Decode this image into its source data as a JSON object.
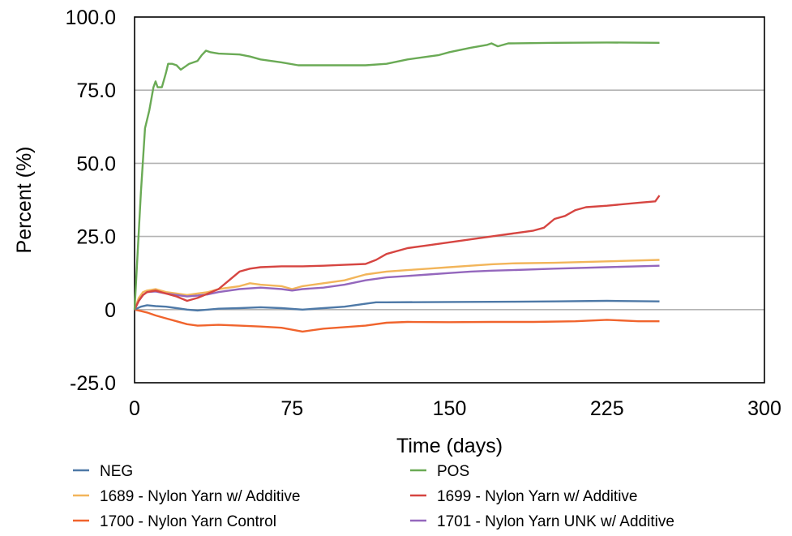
{
  "chart_data": {
    "type": "line",
    "title": "",
    "xlabel": "Time (days)",
    "ylabel": "Percent (%)",
    "xlim": [
      0,
      300
    ],
    "ylim": [
      -25,
      100
    ],
    "x_ticks": [
      0,
      75,
      150,
      225,
      300
    ],
    "x_tick_labels": [
      "0",
      "75",
      "150",
      "225",
      "300"
    ],
    "y_ticks": [
      -25,
      0,
      25,
      50,
      75,
      100
    ],
    "y_tick_labels": [
      "-25.0",
      "0",
      "25.0",
      "50.0",
      "75.0",
      "100.0"
    ],
    "grid": "horizontal",
    "legend_position": "bottom",
    "series": [
      {
        "name": "NEG",
        "color": "#4e79a7",
        "points": [
          [
            0,
            0
          ],
          [
            3,
            1
          ],
          [
            6,
            1.5
          ],
          [
            10,
            1.2
          ],
          [
            15,
            1
          ],
          [
            20,
            0.5
          ],
          [
            25,
            0
          ],
          [
            30,
            -0.3
          ],
          [
            40,
            0.3
          ],
          [
            50,
            0.5
          ],
          [
            60,
            0.8
          ],
          [
            70,
            0.5
          ],
          [
            80,
            0
          ],
          [
            90,
            0.5
          ],
          [
            100,
            1
          ],
          [
            110,
            2
          ],
          [
            115,
            2.5
          ],
          [
            120,
            2.5
          ],
          [
            150,
            2.6
          ],
          [
            180,
            2.7
          ],
          [
            200,
            2.8
          ],
          [
            225,
            3
          ],
          [
            250,
            2.8
          ]
        ]
      },
      {
        "name": "POS",
        "color": "#6aaa55",
        "points": [
          [
            0,
            0
          ],
          [
            3,
            40
          ],
          [
            5,
            62
          ],
          [
            7,
            68
          ],
          [
            9,
            76
          ],
          [
            10,
            78
          ],
          [
            11,
            76
          ],
          [
            13,
            76
          ],
          [
            15,
            81
          ],
          [
            16,
            84
          ],
          [
            18,
            84
          ],
          [
            20,
            83.5
          ],
          [
            22,
            82
          ],
          [
            24,
            83
          ],
          [
            26,
            84
          ],
          [
            30,
            85
          ],
          [
            32,
            87
          ],
          [
            34,
            88.5
          ],
          [
            36,
            88
          ],
          [
            40,
            87.5
          ],
          [
            50,
            87.2
          ],
          [
            55,
            86.5
          ],
          [
            60,
            85.5
          ],
          [
            70,
            84.5
          ],
          [
            78,
            83.5
          ],
          [
            90,
            83.5
          ],
          [
            110,
            83.5
          ],
          [
            120,
            84
          ],
          [
            130,
            85.5
          ],
          [
            140,
            86.5
          ],
          [
            145,
            87
          ],
          [
            150,
            88
          ],
          [
            160,
            89.5
          ],
          [
            168,
            90.5
          ],
          [
            170,
            91
          ],
          [
            173,
            90
          ],
          [
            178,
            91
          ],
          [
            200,
            91.2
          ],
          [
            225,
            91.3
          ],
          [
            250,
            91.2
          ]
        ]
      },
      {
        "name": "1689 - Nylon Yarn w/ Additive",
        "color": "#f2b55a",
        "points": [
          [
            0,
            0
          ],
          [
            2,
            4
          ],
          [
            4,
            6
          ],
          [
            6,
            6.5
          ],
          [
            10,
            7
          ],
          [
            15,
            6
          ],
          [
            20,
            5.5
          ],
          [
            25,
            5
          ],
          [
            30,
            5.5
          ],
          [
            35,
            6
          ],
          [
            40,
            7
          ],
          [
            50,
            8
          ],
          [
            55,
            9
          ],
          [
            60,
            8.5
          ],
          [
            70,
            8
          ],
          [
            75,
            7
          ],
          [
            80,
            8
          ],
          [
            90,
            9
          ],
          [
            100,
            10
          ],
          [
            110,
            12
          ],
          [
            120,
            13
          ],
          [
            130,
            13.5
          ],
          [
            140,
            14
          ],
          [
            150,
            14.5
          ],
          [
            160,
            15
          ],
          [
            170,
            15.5
          ],
          [
            180,
            15.8
          ],
          [
            200,
            16
          ],
          [
            225,
            16.5
          ],
          [
            250,
            17
          ]
        ]
      },
      {
        "name": "1699 - Nylon Yarn w/ Additive",
        "color": "#d64541",
        "points": [
          [
            0,
            0
          ],
          [
            2,
            3
          ],
          [
            4,
            5
          ],
          [
            6,
            6
          ],
          [
            10,
            6.5
          ],
          [
            15,
            5.5
          ],
          [
            20,
            4.5
          ],
          [
            25,
            3
          ],
          [
            30,
            4
          ],
          [
            35,
            5.5
          ],
          [
            40,
            7
          ],
          [
            45,
            10
          ],
          [
            50,
            13
          ],
          [
            55,
            14
          ],
          [
            60,
            14.5
          ],
          [
            70,
            14.8
          ],
          [
            80,
            14.8
          ],
          [
            90,
            15
          ],
          [
            100,
            15.3
          ],
          [
            110,
            15.6
          ],
          [
            115,
            17
          ],
          [
            120,
            19
          ],
          [
            130,
            21
          ],
          [
            140,
            22
          ],
          [
            150,
            23
          ],
          [
            160,
            24
          ],
          [
            170,
            25
          ],
          [
            180,
            26
          ],
          [
            190,
            27
          ],
          [
            195,
            28
          ],
          [
            200,
            31
          ],
          [
            205,
            32
          ],
          [
            210,
            34
          ],
          [
            215,
            35
          ],
          [
            225,
            35.5
          ],
          [
            240,
            36.5
          ],
          [
            248,
            37
          ],
          [
            250,
            39
          ]
        ]
      },
      {
        "name": "1700 - Nylon Yarn Control",
        "color": "#f0642d",
        "points": [
          [
            0,
            0
          ],
          [
            3,
            -0.5
          ],
          [
            6,
            -1
          ],
          [
            10,
            -2
          ],
          [
            15,
            -3
          ],
          [
            20,
            -4
          ],
          [
            25,
            -5
          ],
          [
            30,
            -5.5
          ],
          [
            40,
            -5.2
          ],
          [
            50,
            -5.5
          ],
          [
            60,
            -5.8
          ],
          [
            70,
            -6.2
          ],
          [
            80,
            -7.5
          ],
          [
            90,
            -6.5
          ],
          [
            100,
            -6
          ],
          [
            110,
            -5.5
          ],
          [
            120,
            -4.5
          ],
          [
            130,
            -4.2
          ],
          [
            150,
            -4.3
          ],
          [
            170,
            -4.2
          ],
          [
            190,
            -4.2
          ],
          [
            210,
            -4
          ],
          [
            225,
            -3.5
          ],
          [
            240,
            -4
          ],
          [
            250,
            -4
          ]
        ]
      },
      {
        "name": "1701 - Nylon Yarn UNK w/ Additive",
        "color": "#9467bd",
        "points": [
          [
            0,
            0
          ],
          [
            2,
            3
          ],
          [
            4,
            5
          ],
          [
            6,
            6
          ],
          [
            10,
            6.2
          ],
          [
            15,
            5.5
          ],
          [
            20,
            5
          ],
          [
            25,
            4.5
          ],
          [
            30,
            4.8
          ],
          [
            35,
            5.2
          ],
          [
            40,
            6
          ],
          [
            50,
            7
          ],
          [
            60,
            7.5
          ],
          [
            70,
            7
          ],
          [
            75,
            6.5
          ],
          [
            80,
            7
          ],
          [
            90,
            7.5
          ],
          [
            100,
            8.5
          ],
          [
            110,
            10
          ],
          [
            120,
            11
          ],
          [
            130,
            11.5
          ],
          [
            140,
            12
          ],
          [
            150,
            12.5
          ],
          [
            160,
            13
          ],
          [
            170,
            13.3
          ],
          [
            180,
            13.5
          ],
          [
            200,
            14
          ],
          [
            225,
            14.5
          ],
          [
            250,
            15
          ]
        ]
      }
    ]
  }
}
